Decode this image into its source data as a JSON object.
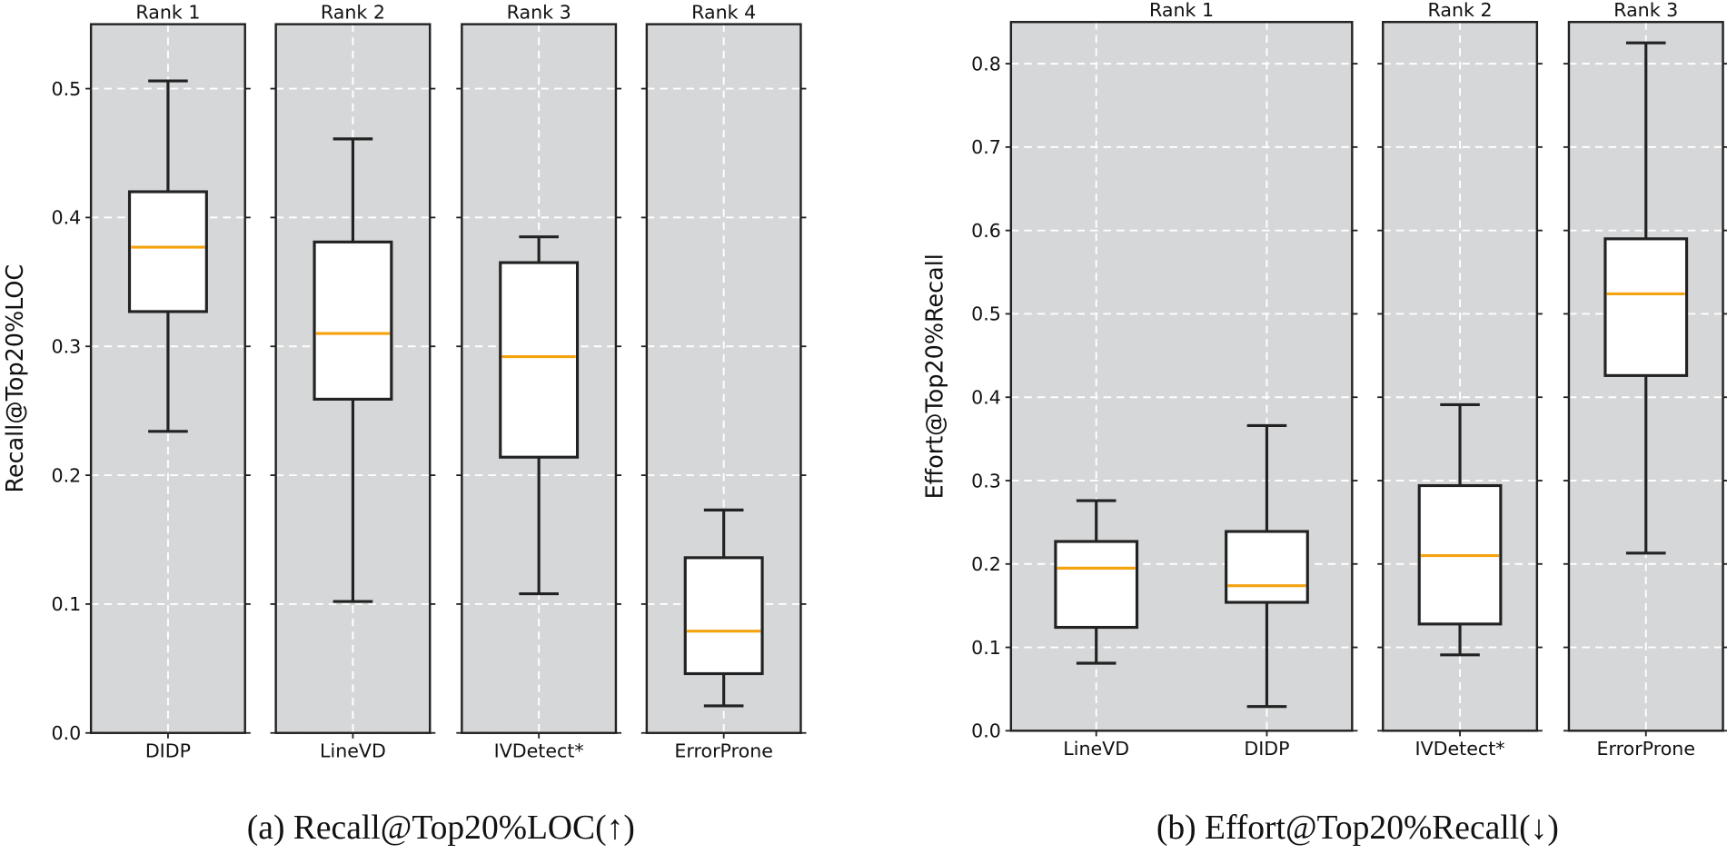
{
  "chart_data": [
    {
      "type": "box",
      "ylabel": "Recall@Top20%LOC",
      "caption": "(a) Recall@Top20%LOC(↑)",
      "ylim": [
        0,
        0.55
      ],
      "yticks": [
        {
          "value": 0,
          "label": "0.0"
        },
        0.1,
        0.2,
        0.3,
        0.4,
        0.5
      ],
      "grid": true,
      "box_color": "#222222",
      "median_color": "#f5a20f",
      "panels": [
        {
          "title": "Rank 1",
          "categories": [
            "DIDP"
          ],
          "min": [
            0.234
          ],
          "q1": [
            0.327
          ],
          "median": [
            0.377
          ],
          "q3": [
            0.42
          ],
          "max": [
            0.506
          ]
        },
        {
          "title": "Rank 2",
          "categories": [
            "LineVD"
          ],
          "min": [
            0.102
          ],
          "q1": [
            0.259
          ],
          "median": [
            0.31
          ],
          "q3": [
            0.381
          ],
          "max": [
            0.461
          ]
        },
        {
          "title": "Rank 3",
          "categories": [
            "IVDetect*"
          ],
          "min": [
            0.108
          ],
          "q1": [
            0.214
          ],
          "median": [
            0.292
          ],
          "q3": [
            0.365
          ],
          "max": [
            0.385
          ]
        },
        {
          "title": "Rank 4",
          "categories": [
            "ErrorProne"
          ],
          "min": [
            0.021
          ],
          "q1": [
            0.046
          ],
          "median": [
            0.079
          ],
          "q3": [
            0.136
          ],
          "max": [
            0.173
          ]
        }
      ]
    },
    {
      "type": "box",
      "ylabel": "Effort@Top20%Recall",
      "caption": "(b) Effort@Top20%Recall(↓)",
      "ylim": [
        0,
        0.85
      ],
      "yticks": [
        {
          "value": 0,
          "label": "0.0"
        },
        0.1,
        0.2,
        0.3,
        0.4,
        0.5,
        0.6,
        0.7,
        0.8
      ],
      "grid": true,
      "box_color": "#222222",
      "median_color": "#f5a20f",
      "panels": [
        {
          "title": "Rank 1",
          "categories": [
            "LineVD",
            "DIDP"
          ],
          "min": [
            0.081,
            0.029
          ],
          "q1": [
            0.124,
            0.154
          ],
          "median": [
            0.195,
            0.174
          ],
          "q3": [
            0.227,
            0.239
          ],
          "max": [
            0.276,
            0.366
          ]
        },
        {
          "title": "Rank 2",
          "categories": [
            "IVDetect*"
          ],
          "min": [
            0.091
          ],
          "q1": [
            0.128
          ],
          "median": [
            0.21
          ],
          "q3": [
            0.294
          ],
          "max": [
            0.391
          ]
        },
        {
          "title": "Rank 3",
          "categories": [
            "ErrorProne"
          ],
          "min": [
            0.213
          ],
          "q1": [
            0.426
          ],
          "median": [
            0.524
          ],
          "q3": [
            0.59
          ],
          "max": [
            0.825
          ]
        }
      ]
    }
  ]
}
